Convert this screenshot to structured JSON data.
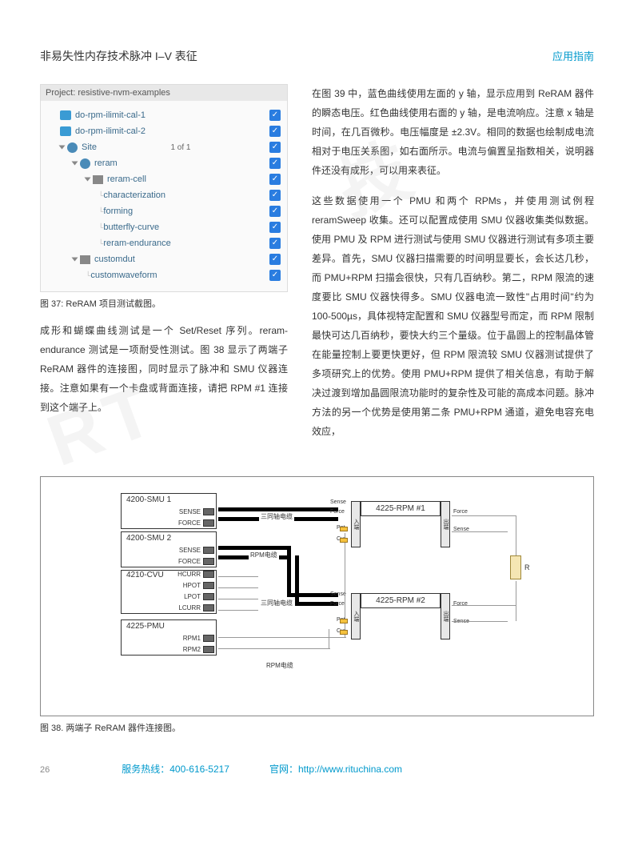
{
  "header": {
    "title": "非易失性内存技术脉冲 I–V 表征",
    "tag": "应用指南"
  },
  "project": {
    "title": "Project: resistive-nvm-examples",
    "items": [
      {
        "indent": 1,
        "icon": "film",
        "label": "do-rpm-ilimit-cal-1",
        "check": true
      },
      {
        "indent": 1,
        "icon": "film",
        "label": "do-rpm-ilimit-cal-2",
        "check": true
      },
      {
        "indent": 1,
        "icon": "globe",
        "tri": true,
        "label": "Site",
        "right": "1 of 1",
        "check": true
      },
      {
        "indent": 2,
        "icon": "globe",
        "tri": true,
        "label": "reram",
        "check": true
      },
      {
        "indent": 3,
        "icon": "chip",
        "tri": true,
        "label": "reram-cell",
        "check": true
      },
      {
        "indent": 4,
        "icon": "",
        "label": "characterization",
        "check": true
      },
      {
        "indent": 4,
        "icon": "",
        "label": "forming",
        "check": true
      },
      {
        "indent": 4,
        "icon": "",
        "label": "butterfly-curve",
        "check": true
      },
      {
        "indent": 4,
        "icon": "",
        "label": "reram-endurance",
        "check": true
      },
      {
        "indent": 2,
        "icon": "chip",
        "tri": true,
        "label": "customdut",
        "check": true
      },
      {
        "indent": 3,
        "icon": "",
        "label": "customwaveform",
        "check": true
      }
    ]
  },
  "caption37": "图 37: ReRAM 项目测试截图。",
  "leftpara": "成形和蝴蝶曲线测试是一个 Set/Reset 序列。reram-endurance 测试是一项耐受性测试。图 38 显示了两端子 ReRAM 器件的连接图，同时显示了脉冲和 SMU 仪器连接。注意如果有一个卡盘或背面连接，请把 RPM #1 连接到这个端子上。",
  "right": {
    "p1": "在图 39 中，蓝色曲线使用左面的 y 轴，显示应用到 ReRAM 器件的瞬态电压。红色曲线使用右面的 y 轴，是电流响应。注意 x 轴是时间，在几百微秒。电压幅度是 ±2.3V。相同的数据也绘制成电流相对于电压关系图，如右面所示。电流与偏置呈指数相关，说明器件还没有成形，可以用来表征。",
    "p2": "这些数据使用一个 PMU 和两个 RPMs，并使用测试例程 reramSweep 收集。还可以配置成使用 SMU 仪器收集类似数据。使用 PMU 及 RPM 进行测试与使用 SMU 仪器进行测试有多项主要差异。首先，SMU 仪器扫描需要的时间明显要长，会长达几秒，而 PMU+RPM 扫描会很快，只有几百纳秒。第二，RPM 限流的速度要比 SMU 仪器快得多。SMU 仪器电流一致性\"占用时间\"约为 100-500µs，具体视特定配置和 SMU 仪器型号而定，而 RPM 限制最快可达几百纳秒，要快大约三个量级。位于晶圆上的控制晶体管在能量控制上要更快更好，但 RPM 限流较 SMU 仪器测试提供了多项研究上的优势。使用 PMU+RPM 提供了相关信息，有助于解决过渡到增加晶圆限流功能时的复杂性及可能的高成本问题。脉冲方法的另一个优势是使用第二条 PMU+RPM 通道，避免电容充电效应，"
  },
  "diagram": {
    "smu1": {
      "title": "4200-SMU 1",
      "ports": [
        "SENSE",
        "FORCE"
      ]
    },
    "smu2": {
      "title": "4200-SMU 2",
      "ports": [
        "SENSE",
        "FORCE"
      ]
    },
    "cvu": {
      "title": "4210-CVU",
      "ports": [
        "HCURR",
        "HPOT",
        "LPOT",
        "LCURR"
      ]
    },
    "pmu": {
      "title": "4225-PMU",
      "ports": [
        "RPM1",
        "RPM2"
      ]
    },
    "rpm1": "4225-RPM #1",
    "rpm2": "4225-RPM #2",
    "rpm_ports_left": [
      "Sense",
      "Force",
      "Pot",
      "Cur"
    ],
    "rpm_ports_right": [
      "Force",
      "Sense"
    ],
    "triax": "三同轴电缆",
    "rpmcable": "RPM电缆",
    "in_label": "入端",
    "out_label": "出端",
    "R": "R"
  },
  "caption38": "图 38. 两端子 ReRAM 器件连接图。",
  "footer": {
    "page": "26",
    "hotline": "服务热线：400-616-5217",
    "site_label": "官网：",
    "site_url": "http://www.rituchina.com"
  }
}
